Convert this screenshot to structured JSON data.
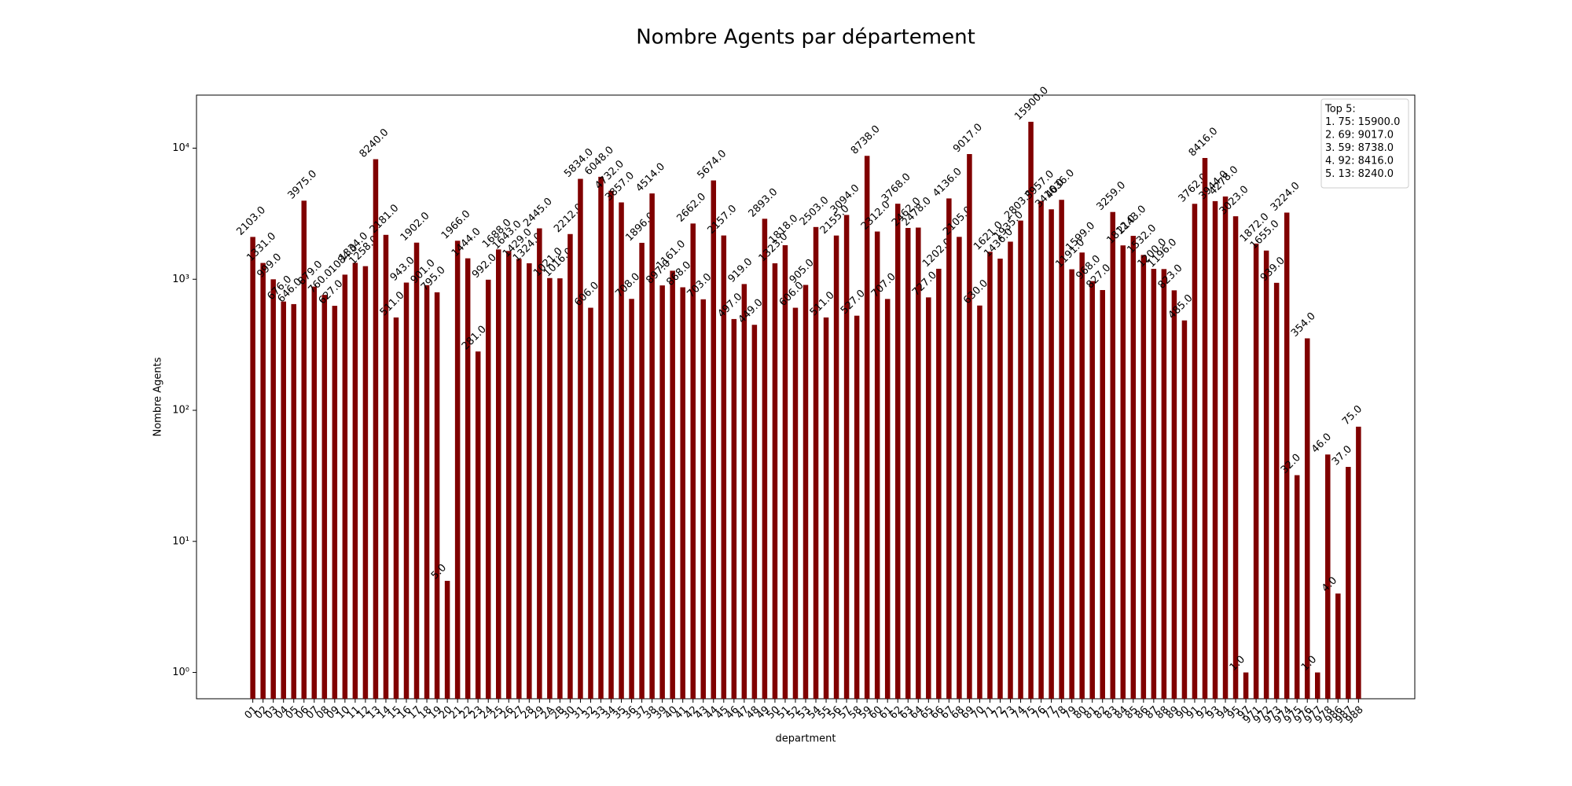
{
  "chart_data": {
    "type": "bar",
    "title": "Nombre Agents par département",
    "xlabel": "department",
    "ylabel": "Nombre Agents",
    "color": "#800000",
    "log_scale": true,
    "legend_position": "upper right",
    "annotation": [
      "Top 5:",
      "1. 75: 15900.0",
      "2. 69: 9017.0",
      "3. 59: 8738.0",
      "4. 92: 8416.0",
      "5. 13: 8240.0"
    ],
    "categories": [
      "01",
      "02",
      "03",
      "04",
      "05",
      "06",
      "07",
      "08",
      "09",
      "10",
      "11",
      "12",
      "13",
      "14",
      "15",
      "16",
      "17",
      "18",
      "19",
      "20",
      "21",
      "22",
      "23",
      "24",
      "25",
      "26",
      "27",
      "28",
      "29",
      "2A",
      "2B",
      "30",
      "31",
      "32",
      "33",
      "34",
      "35",
      "36",
      "37",
      "38",
      "39",
      "40",
      "41",
      "42",
      "43",
      "44",
      "45",
      "46",
      "47",
      "48",
      "49",
      "50",
      "51",
      "52",
      "53",
      "54",
      "55",
      "56",
      "57",
      "58",
      "59",
      "60",
      "61",
      "62",
      "63",
      "64",
      "65",
      "66",
      "67",
      "68",
      "69",
      "70",
      "71",
      "72",
      "73",
      "74",
      "75",
      "76",
      "77",
      "78",
      "79",
      "80",
      "81",
      "82",
      "83",
      "84",
      "85",
      "86",
      "87",
      "88",
      "89",
      "90",
      "91",
      "92",
      "93",
      "94",
      "95",
      "97",
      "971",
      "972",
      "973",
      "974",
      "975",
      "976",
      "977",
      "978",
      "986",
      "987",
      "988"
    ],
    "values": [
      2103,
      1331,
      999,
      676,
      646,
      3975,
      879,
      760,
      627,
      1084,
      1334,
      1258,
      8240,
      2181,
      511,
      943,
      1902,
      901,
      795,
      5,
      1966,
      1444,
      281,
      992,
      1688,
      1643,
      1429,
      1324,
      2445,
      1021,
      1016,
      2212,
      5834,
      606,
      6048,
      4732,
      3857,
      708,
      1896,
      4514,
      897,
      1161,
      868,
      2662,
      703,
      5674,
      2157,
      497,
      919,
      449,
      2893,
      1323,
      1818,
      606,
      905,
      2503,
      511,
      2155,
      3094,
      527,
      8738,
      2312,
      707,
      3768,
      2462,
      2478,
      727,
      1202,
      4136,
      2105,
      9017,
      630,
      1621,
      1436,
      1935,
      2803,
      15900,
      3957,
      3416,
      4036,
      1191,
      1599,
      968,
      827,
      3259,
      1812,
      2143,
      1532,
      1200,
      1196,
      823,
      485,
      3762,
      8416,
      3944,
      4278,
      3023,
      1,
      1872,
      1655,
      939,
      3224,
      32,
      354,
      1,
      46,
      4,
      37,
      75
    ],
    "value_labels": [
      "2103.0",
      "1331.0",
      "999.0",
      "676.0",
      "646.0",
      "3975.0",
      "879.0",
      "760.0",
      "627.0",
      "1084.0",
      "1334.0",
      "1258.0",
      "8240.0",
      "2181.0",
      "511.0",
      "943.0",
      "1902.0",
      "901.0",
      "795.0",
      "5.0",
      "1966.0",
      "1444.0",
      "281.0",
      "992.0",
      "1688.0",
      "1643.0",
      "1429.0",
      "1324.0",
      "2445.0",
      "1021.0",
      "1016.0",
      "2212.0",
      "5834.0",
      "606.0",
      "6048.0",
      "4732.0",
      "3857.0",
      "708.0",
      "1896.0",
      "4514.0",
      "897.0",
      "1161.0",
      "868.0",
      "2662.0",
      "703.0",
      "5674.0",
      "2157.0",
      "497.0",
      "919.0",
      "449.0",
      "2893.0",
      "1323.0",
      "1818.0",
      "606.0",
      "905.0",
      "2503.0",
      "511.0",
      "2155.0",
      "3094.0",
      "527.0",
      "8738.0",
      "2312.0",
      "707.0",
      "3768.0",
      "2462.0",
      "2478.0",
      "727.0",
      "1202.0",
      "4136.0",
      "2105.0",
      "9017.0",
      "630.0",
      "1621.0",
      "1436.0",
      "1935.0",
      "2803.0",
      "15900.0",
      "3957.0",
      "3416.0",
      "4036.0",
      "1191.0",
      "1599.0",
      "968.0",
      "827.0",
      "3259.0",
      "1812.0",
      "2143.0",
      "1532.0",
      "1200.0",
      "1196.0",
      "823.0",
      "485.0",
      "3762.0",
      "8416.0",
      "3944.0",
      "4278.0",
      "3023.0",
      "1.0",
      "1872.0",
      "1655.0",
      "939.0",
      "3224.0",
      "32.0",
      "354.0",
      "1.0",
      "46.0",
      "4.0",
      "37.0",
      "75.0"
    ],
    "ylim": [
      0.63,
      25400
    ],
    "yticks": [
      {
        "value": 1,
        "label": "10⁰"
      },
      {
        "value": 10,
        "label": "10¹"
      },
      {
        "value": 100,
        "label": "10²"
      },
      {
        "value": 1000,
        "label": "10³"
      },
      {
        "value": 10000,
        "label": "10⁴"
      }
    ]
  }
}
